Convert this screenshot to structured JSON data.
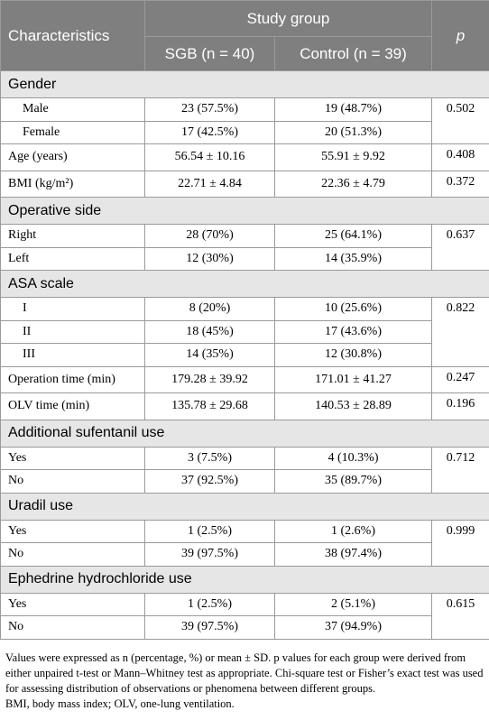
{
  "header": {
    "characteristics": "Characteristics",
    "study_group": "Study group",
    "p": "p",
    "sgb": "SGB (n = 40)",
    "control": "Control (n = 39)"
  },
  "sections": [
    {
      "title": "Gender",
      "groups": [
        {
          "p": "0.502",
          "rows": [
            [
              "Male",
              "23 (57.5%)",
              "19 (48.7%)"
            ],
            [
              "Female",
              "17 (42.5%)",
              "20 (51.3%)"
            ]
          ]
        },
        {
          "p": "0.408",
          "rows": [
            [
              "Age (years)",
              "56.54 ± 10.16",
              "55.91 ± 9.92"
            ]
          ]
        },
        {
          "p": "0.372",
          "rows": [
            [
              "BMI (kg/m²)",
              "22.71 ± 4.84",
              "22.36 ± 4.79"
            ]
          ]
        }
      ]
    },
    {
      "title": "Operative side",
      "groups": [
        {
          "p": "0.637",
          "rows": [
            [
              "Right",
              "28 (70%)",
              "25 (64.1%)"
            ],
            [
              "Left",
              "12 (30%)",
              "14 (35.9%)"
            ]
          ]
        }
      ]
    },
    {
      "title": "ASA scale",
      "groups": [
        {
          "p": "0.822",
          "rows": [
            [
              "I",
              "8 (20%)",
              "10 (25.6%)"
            ],
            [
              "II",
              "18 (45%)",
              "17 (43.6%)"
            ],
            [
              "III",
              "14 (35%)",
              "12 (30.8%)"
            ]
          ]
        },
        {
          "p": "0.247",
          "rows": [
            [
              "Operation time (min)",
              "179.28 ± 39.92",
              "171.01 ± 41.27"
            ]
          ]
        },
        {
          "p": "0.196",
          "rows": [
            [
              "OLV time (min)",
              "135.78 ± 29.68",
              "140.53 ± 28.89"
            ]
          ]
        }
      ]
    },
    {
      "title": "Additional sufentanil use",
      "groups": [
        {
          "p": "0.712",
          "rows": [
            [
              "Yes",
              "3 (7.5%)",
              "4 (10.3%)"
            ],
            [
              "No",
              "37 (92.5%)",
              "35 (89.7%)"
            ]
          ]
        }
      ]
    },
    {
      "title": "Uradil use",
      "groups": [
        {
          "p": "0.999",
          "rows": [
            [
              "Yes",
              "1 (2.5%)",
              "1 (2.6%)"
            ],
            [
              "No",
              "39 (97.5%)",
              "38 (97.4%)"
            ]
          ]
        }
      ]
    },
    {
      "title": "Ephedrine hydrochloride use",
      "groups": [
        {
          "p": "0.615",
          "rows": [
            [
              "Yes",
              "1 (2.5%)",
              "2 (5.1%)"
            ],
            [
              "No",
              "39 (97.5%)",
              "37 (94.9%)"
            ]
          ]
        }
      ]
    }
  ],
  "footnotes": [
    "Values were expressed as n (percentage, %) or mean ± SD. p values for each group were derived from either unpaired t-test or Mann–Whitney test as appropriate. Chi-square test or Fisher’s exact test was used for assessing distribution of observations or phenomena between different groups.",
    "BMI, body mass index; OLV, one-lung ventilation."
  ]
}
